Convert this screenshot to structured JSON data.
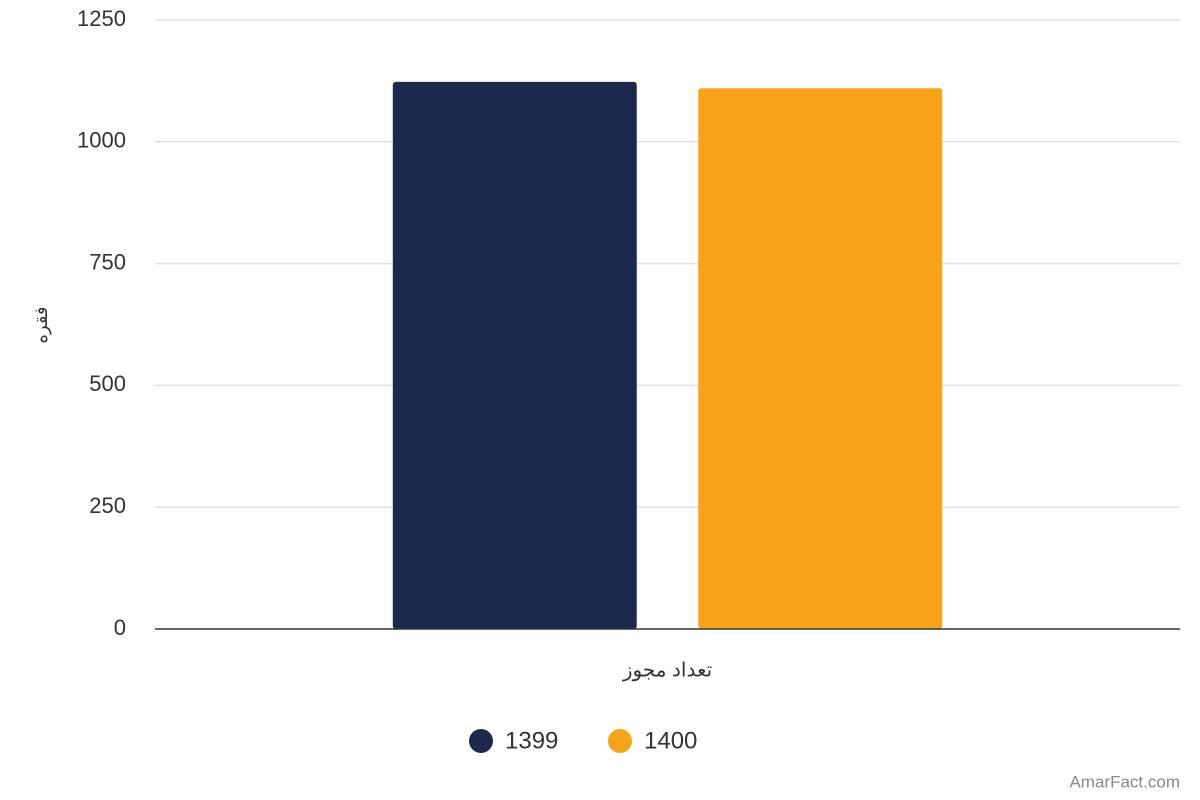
{
  "chart_data": {
    "type": "bar",
    "categories": [
      "تعداد مجوز"
    ],
    "series": [
      {
        "name": "1399",
        "color": "#1b2a4c",
        "values": [
          1123
        ]
      },
      {
        "name": "1400",
        "color": "#f9a418",
        "values": [
          1110
        ]
      }
    ],
    "ylim": [
      0,
      1250
    ],
    "yticks": [
      0,
      250,
      500,
      750,
      1000,
      1250
    ],
    "y_label": "فقره",
    "grid": true,
    "legend": "bottom",
    "source": "AmarFact.com"
  }
}
